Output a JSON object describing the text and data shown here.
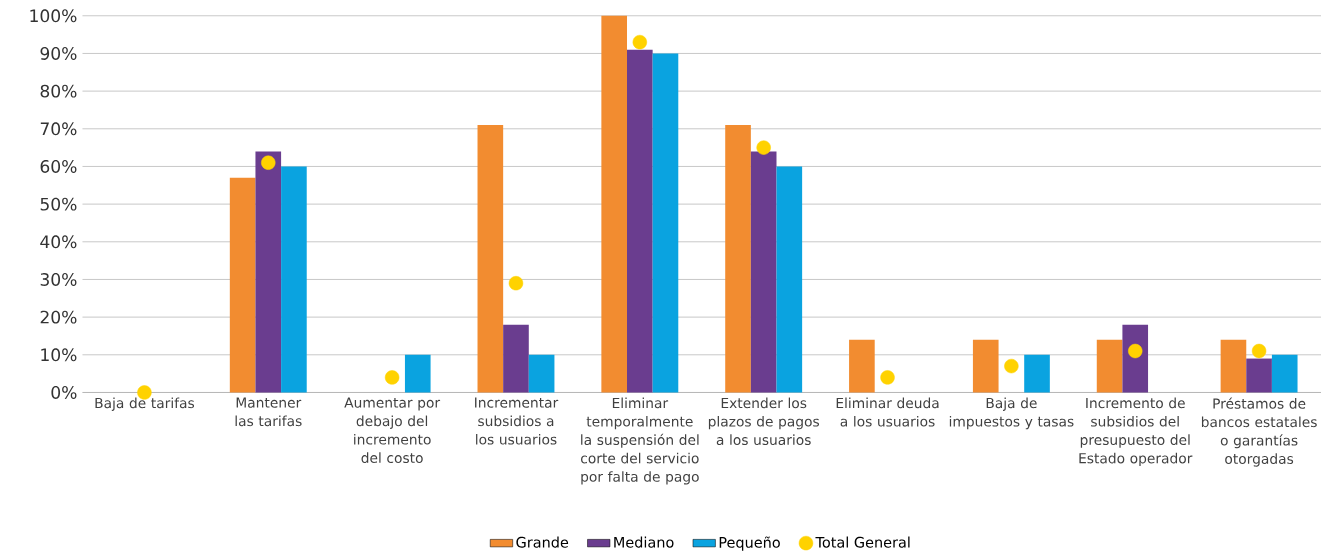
{
  "chart_data": {
    "type": "bar",
    "categories": [
      "Baja de tarifas",
      "Mantener las tarifas",
      "Aumentar por debajo del incremento del costo",
      "Incrementar subsidios a los usuarios",
      "Eliminar temporalmente la suspensión del corte del servicio por falta de pago",
      "Extender los plazos de pagos a los usuarios",
      "Eliminar deuda a los usuarios",
      "Baja de impuestos y tasas",
      "Incremento de subsidios del presupuesto del Estado operador",
      "Préstamos de bancos estatales o garantías otorgadas"
    ],
    "series": [
      {
        "name": "Grande",
        "color": "#f28c30",
        "values": [
          0,
          57,
          0,
          71,
          100,
          71,
          14,
          14,
          14,
          14
        ]
      },
      {
        "name": "Mediano",
        "color": "#6a3d8f",
        "values": [
          0,
          64,
          0,
          18,
          91,
          64,
          0,
          0,
          18,
          9
        ]
      },
      {
        "name": "Pequeño",
        "color": "#0aa3e0",
        "values": [
          0,
          60,
          10,
          10,
          90,
          60,
          0,
          10,
          0,
          10
        ]
      },
      {
        "name": "Total General",
        "type": "scatter",
        "color": "#ffd200",
        "values": [
          0,
          61,
          4,
          29,
          93,
          65,
          4,
          7,
          11,
          11
        ]
      }
    ],
    "ylim": [
      0,
      100
    ],
    "yticks": [
      {
        "value": 0,
        "label": "0%"
      },
      {
        "value": 10,
        "label": "10%"
      },
      {
        "value": 20,
        "label": "20%"
      },
      {
        "value": 30,
        "label": "30%"
      },
      {
        "value": 40,
        "label": "40%"
      },
      {
        "value": 50,
        "label": "50%"
      },
      {
        "value": 60,
        "label": "60%"
      },
      {
        "value": 70,
        "label": "70%"
      },
      {
        "value": 80,
        "label": "80%"
      },
      {
        "value": 90,
        "label": "90%"
      },
      {
        "value": 100,
        "label": "100%"
      }
    ],
    "grid": "y",
    "legend": "bottom"
  }
}
